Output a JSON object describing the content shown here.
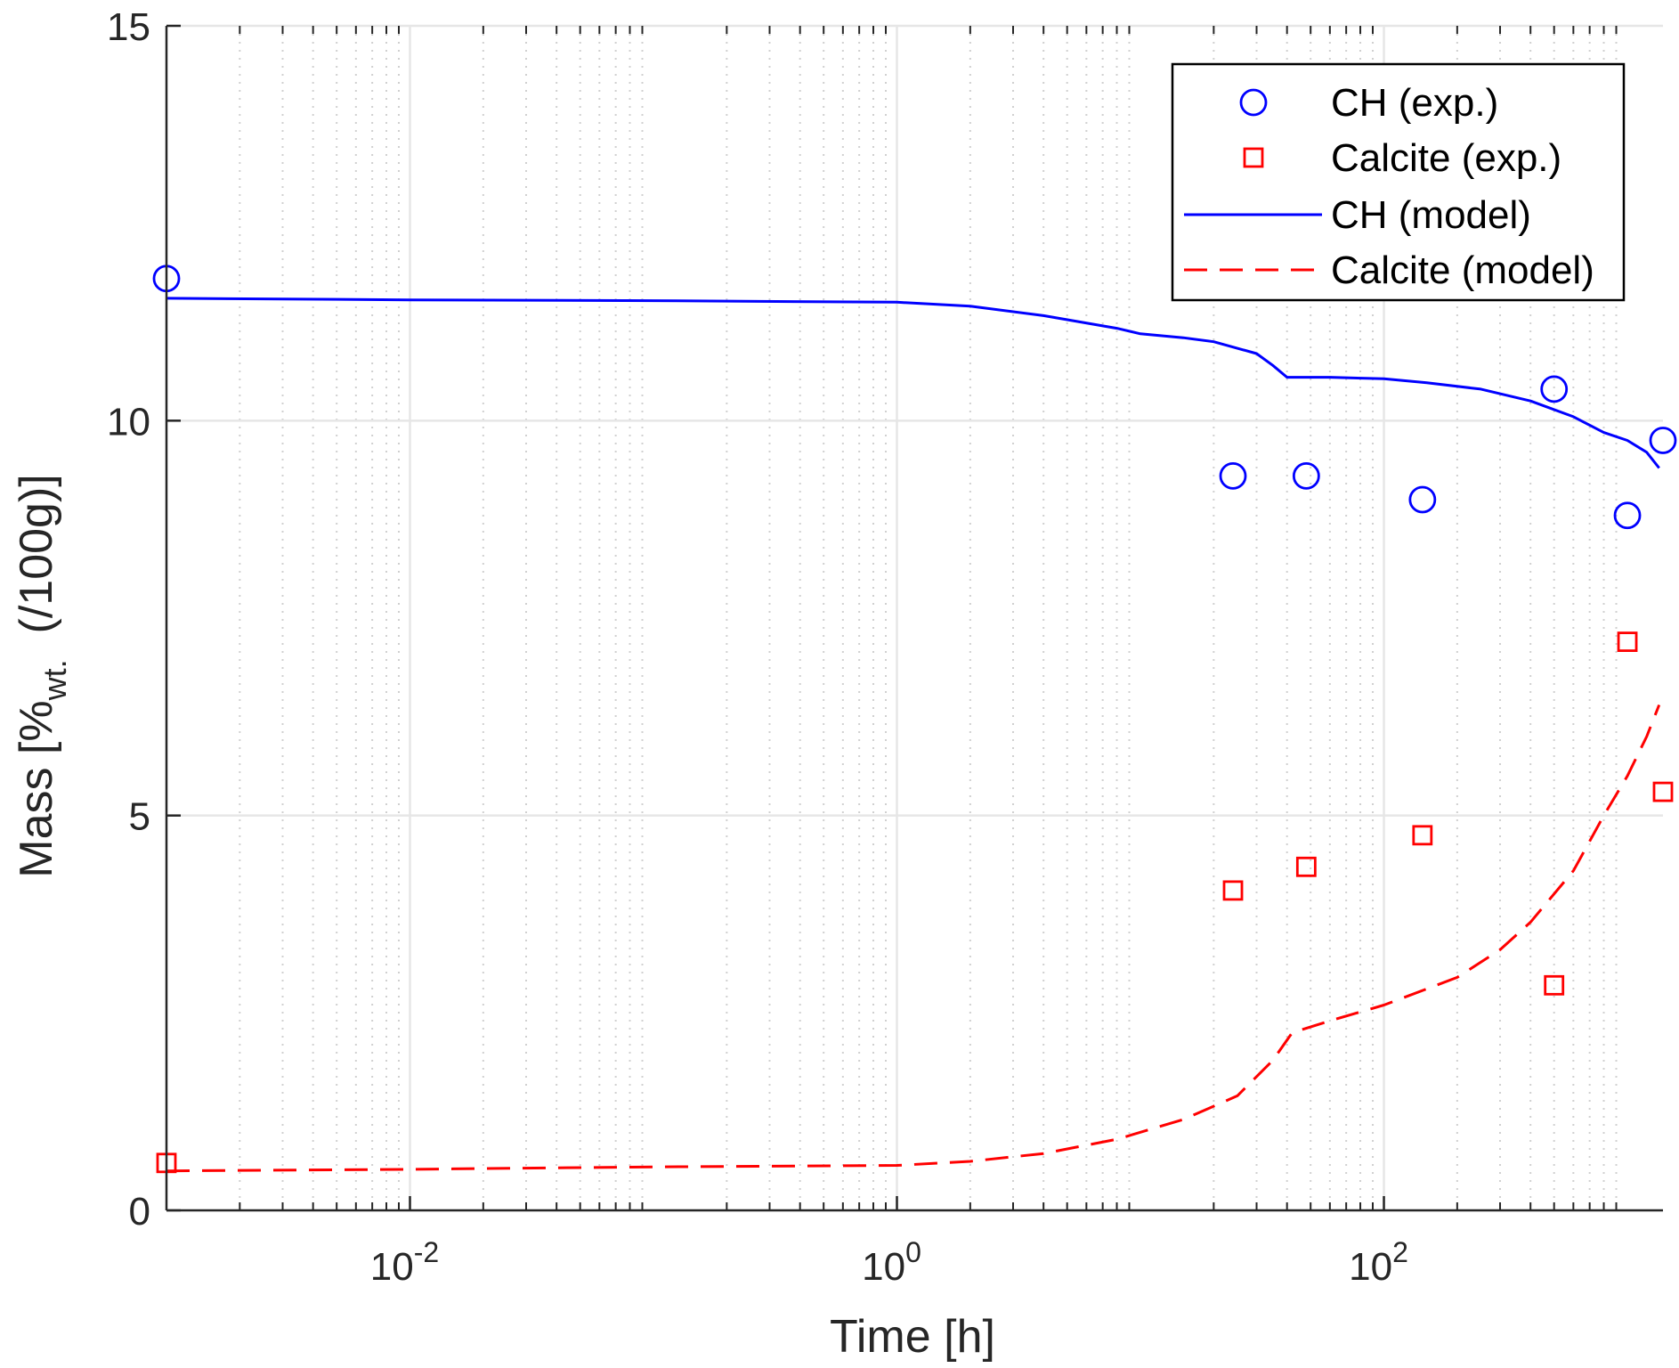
{
  "chart_data": {
    "type": "scatter",
    "x_scale": "log",
    "xlabel": "Time [h]",
    "ylabel": {
      "prefix": "Mass [%",
      "subscript": "wt.",
      "suffix": "  (/100g)]"
    },
    "xlim": [
      0.001,
      1400
    ],
    "ylim": [
      0,
      15
    ],
    "x_ticks": [
      {
        "value": 0.01,
        "base": "10",
        "exp": "-2"
      },
      {
        "value": 1,
        "base": "10",
        "exp": "0"
      },
      {
        "value": 100,
        "base": "10",
        "exp": "2"
      }
    ],
    "y_ticks": [
      {
        "value": 0,
        "label": "0"
      },
      {
        "value": 5,
        "label": "5"
      },
      {
        "value": 10,
        "label": "10"
      },
      {
        "value": 15,
        "label": "15"
      }
    ],
    "grid": true,
    "minor_grid": true,
    "legend": "top-right",
    "colors": {
      "ch": "#0000ff",
      "calcite": "#ff0000",
      "axis": "#262626",
      "grid": "#e6e6e6"
    },
    "series": [
      {
        "name": "CH (exp.)",
        "kind": "marker",
        "marker": "circle",
        "color": "#0000ff",
        "points": [
          [
            0.001,
            11.8
          ],
          [
            24,
            9.3
          ],
          [
            48,
            9.3
          ],
          [
            144,
            9.0
          ],
          [
            500,
            10.4
          ],
          [
            1000,
            8.8
          ],
          [
            1400,
            9.75
          ]
        ]
      },
      {
        "name": "Calcite (exp.)",
        "kind": "marker",
        "marker": "square",
        "color": "#ff0000",
        "points": [
          [
            0.001,
            0.6
          ],
          [
            24,
            4.05
          ],
          [
            48,
            4.35
          ],
          [
            144,
            4.75
          ],
          [
            500,
            2.85
          ],
          [
            1000,
            7.2
          ],
          [
            1400,
            5.3
          ]
        ]
      },
      {
        "name": "CH (model)",
        "kind": "line",
        "dash": "solid",
        "color": "#0000ff",
        "points": [
          [
            0.001,
            11.55
          ],
          [
            0.01,
            11.53
          ],
          [
            0.1,
            11.52
          ],
          [
            1,
            11.5
          ],
          [
            2,
            11.45
          ],
          [
            4,
            11.33
          ],
          [
            8,
            11.17
          ],
          [
            10,
            11.1
          ],
          [
            15,
            11.05
          ],
          [
            20,
            11.0
          ],
          [
            30,
            10.85
          ],
          [
            35,
            10.7
          ],
          [
            40,
            10.55
          ],
          [
            60,
            10.55
          ],
          [
            100,
            10.53
          ],
          [
            150,
            10.48
          ],
          [
            250,
            10.4
          ],
          [
            400,
            10.25
          ],
          [
            600,
            10.05
          ],
          [
            800,
            9.85
          ],
          [
            1000,
            9.75
          ],
          [
            1200,
            9.6
          ],
          [
            1350,
            9.4
          ]
        ]
      },
      {
        "name": "Calcite (model)",
        "kind": "line",
        "dash": "dashed",
        "color": "#ff0000",
        "points": [
          [
            0.001,
            0.5
          ],
          [
            0.01,
            0.52
          ],
          [
            0.1,
            0.55
          ],
          [
            1,
            0.57
          ],
          [
            2,
            0.62
          ],
          [
            4,
            0.72
          ],
          [
            8,
            0.9
          ],
          [
            15,
            1.15
          ],
          [
            25,
            1.45
          ],
          [
            35,
            1.9
          ],
          [
            42,
            2.25
          ],
          [
            60,
            2.4
          ],
          [
            100,
            2.6
          ],
          [
            200,
            2.95
          ],
          [
            300,
            3.3
          ],
          [
            400,
            3.65
          ],
          [
            600,
            4.3
          ],
          [
            800,
            5.0
          ],
          [
            1000,
            5.5
          ],
          [
            1200,
            6.0
          ],
          [
            1350,
            6.4
          ]
        ]
      }
    ]
  }
}
